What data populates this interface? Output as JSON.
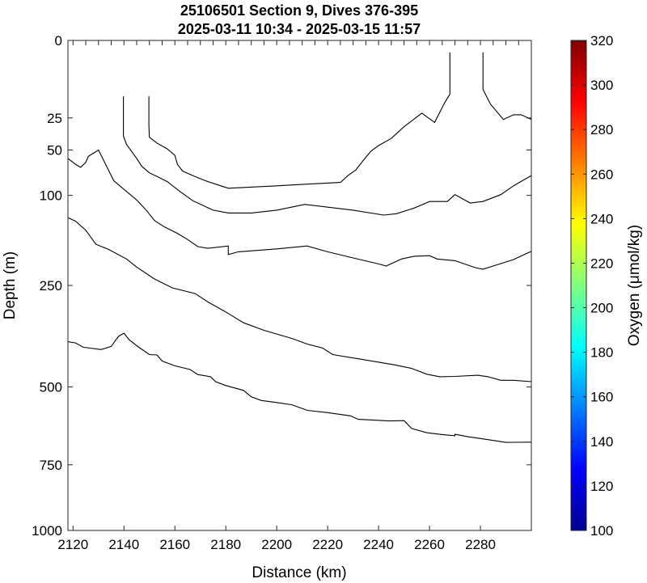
{
  "chart_data": {
    "type": "contour",
    "title": "25106501 Section 9, Dives 376-395",
    "subtitle": "2025-03-11 10:34 - 2025-03-15 11:57",
    "xlabel": "Distance (km)",
    "ylabel": "Depth (m)",
    "xlim": [
      2118,
      2300
    ],
    "ylim": [
      0,
      1000
    ],
    "y_scale": "sqrt",
    "x_ticks": [
      2120,
      2140,
      2160,
      2180,
      2200,
      2220,
      2240,
      2260,
      2280
    ],
    "x_tick_labels": [
      "2120",
      "2140",
      "2160",
      "2180",
      "2200",
      "2220",
      "2240",
      "2260",
      "2280"
    ],
    "y_ticks": [
      0,
      25,
      50,
      100,
      250,
      500,
      750,
      1000
    ],
    "y_tick_labels": [
      "0",
      "25",
      "50",
      "100",
      "250",
      "500",
      "750",
      "1000"
    ],
    "colorbar": {
      "label": "Oxygen (μmol/kg)",
      "min": 100,
      "max": 320,
      "ticks": [
        100,
        120,
        140,
        160,
        180,
        200,
        220,
        240,
        260,
        280,
        300,
        320
      ],
      "colormap": "jet"
    },
    "contours": [
      {
        "points": [
          [
            2139.8,
            13
          ],
          [
            2139.8,
            38
          ],
          [
            2141,
            45
          ],
          [
            2145,
            58
          ],
          [
            2147,
            66
          ],
          [
            2150,
            73
          ],
          [
            2153,
            77
          ],
          [
            2157,
            83
          ],
          [
            2162,
            95
          ],
          [
            2167,
            107
          ],
          [
            2175,
            120
          ],
          [
            2181,
            124
          ],
          [
            2190,
            124
          ],
          [
            2200,
            120
          ],
          [
            2211,
            112
          ],
          [
            2230,
            120
          ],
          [
            2242,
            127
          ],
          [
            2247,
            125
          ],
          [
            2254,
            117
          ],
          [
            2260,
            108
          ],
          [
            2267,
            108
          ],
          [
            2270,
            99
          ],
          [
            2276,
            110
          ],
          [
            2281,
            108
          ],
          [
            2288,
            99
          ],
          [
            2293,
            88
          ],
          [
            2300,
            76
          ]
        ]
      },
      {
        "points": [
          [
            2149.8,
            13
          ],
          [
            2149.8,
            30
          ],
          [
            2150,
            39
          ],
          [
            2153,
            44
          ],
          [
            2157,
            49
          ],
          [
            2160,
            55
          ],
          [
            2161,
            64
          ],
          [
            2163,
            71
          ],
          [
            2167,
            76
          ],
          [
            2172,
            82
          ],
          [
            2178,
            88
          ],
          [
            2181,
            91
          ],
          [
            2200,
            88
          ],
          [
            2212,
            86
          ],
          [
            2225,
            84
          ],
          [
            2228,
            76
          ],
          [
            2231,
            70
          ],
          [
            2234,
            60
          ],
          [
            2237,
            51
          ],
          [
            2240,
            46
          ],
          [
            2245,
            40
          ],
          [
            2250,
            31
          ],
          [
            2257,
            22
          ],
          [
            2262,
            28
          ],
          [
            2266,
            16
          ],
          [
            2268,
            12
          ],
          [
            2268,
            0.6
          ]
        ]
      },
      {
        "points": [
          [
            2281,
            0.6
          ],
          [
            2281,
            10
          ],
          [
            2284,
            17
          ],
          [
            2289,
            26
          ],
          [
            2293,
            23
          ],
          [
            2296,
            23
          ],
          [
            2300,
            26
          ]
        ]
      },
      {
        "points": [
          [
            2118,
            58
          ],
          [
            2121,
            64
          ],
          [
            2123,
            67
          ],
          [
            2125,
            62
          ],
          [
            2126,
            56
          ],
          [
            2128,
            53
          ],
          [
            2130,
            50
          ],
          [
            2133,
            65
          ],
          [
            2136,
            82
          ],
          [
            2141,
            95
          ],
          [
            2145,
            106
          ],
          [
            2149,
            121
          ],
          [
            2152,
            135
          ],
          [
            2156,
            145
          ],
          [
            2161,
            155
          ],
          [
            2165,
            165
          ],
          [
            2169,
            177
          ],
          [
            2173,
            180
          ],
          [
            2181,
            176
          ],
          [
            2181,
            191
          ],
          [
            2185,
            186
          ],
          [
            2200,
            181
          ],
          [
            2212,
            176
          ],
          [
            2220,
            186
          ],
          [
            2230,
            197
          ],
          [
            2240,
            208
          ],
          [
            2243,
            212
          ],
          [
            2249,
            199
          ],
          [
            2254,
            194
          ],
          [
            2260,
            193
          ],
          [
            2263,
            199
          ],
          [
            2270,
            202
          ],
          [
            2278,
            215
          ],
          [
            2281,
            218
          ],
          [
            2287,
            209
          ],
          [
            2293,
            200
          ],
          [
            2300,
            185
          ]
        ]
      },
      {
        "points": [
          [
            2118,
            131
          ],
          [
            2121,
            136
          ],
          [
            2125,
            150
          ],
          [
            2129,
            173
          ],
          [
            2134,
            182
          ],
          [
            2141,
            199
          ],
          [
            2145,
            214
          ],
          [
            2152,
            237
          ],
          [
            2159,
            255
          ],
          [
            2168,
            267
          ],
          [
            2173,
            285
          ],
          [
            2180,
            307
          ],
          [
            2187,
            332
          ],
          [
            2195,
            350
          ],
          [
            2206,
            370
          ],
          [
            2212,
            384
          ],
          [
            2218,
            394
          ],
          [
            2222,
            411
          ],
          [
            2232,
            422
          ],
          [
            2246,
            438
          ],
          [
            2253,
            448
          ],
          [
            2259,
            464
          ],
          [
            2264,
            471
          ],
          [
            2270,
            470
          ],
          [
            2279,
            467
          ],
          [
            2283,
            471
          ],
          [
            2288,
            481
          ],
          [
            2293,
            481
          ],
          [
            2300,
            485
          ]
        ]
      },
      {
        "points": [
          [
            2118,
            378
          ],
          [
            2121,
            381
          ],
          [
            2124,
            392
          ],
          [
            2131,
            398
          ],
          [
            2135,
            390
          ],
          [
            2137,
            372
          ],
          [
            2138,
            364
          ],
          [
            2140,
            357
          ],
          [
            2142,
            373
          ],
          [
            2145,
            388
          ],
          [
            2150,
            411
          ],
          [
            2153,
            412
          ],
          [
            2155,
            428
          ],
          [
            2160,
            441
          ],
          [
            2166,
            451
          ],
          [
            2169,
            465
          ],
          [
            2174,
            471
          ],
          [
            2176,
            485
          ],
          [
            2180,
            496
          ],
          [
            2187,
            510
          ],
          [
            2190,
            529
          ],
          [
            2194,
            540
          ],
          [
            2200,
            546
          ],
          [
            2206,
            553
          ],
          [
            2212,
            570
          ],
          [
            2220,
            577
          ],
          [
            2229,
            587
          ],
          [
            2232,
            598
          ],
          [
            2240,
            601
          ],
          [
            2244,
            603
          ],
          [
            2250,
            602
          ],
          [
            2253,
            627
          ],
          [
            2259,
            641
          ],
          [
            2265,
            647
          ],
          [
            2270,
            651
          ],
          [
            2270,
            646
          ],
          [
            2275,
            654
          ],
          [
            2280,
            660
          ],
          [
            2284,
            665
          ],
          [
            2290,
            673
          ],
          [
            2300,
            672
          ]
        ]
      }
    ]
  }
}
